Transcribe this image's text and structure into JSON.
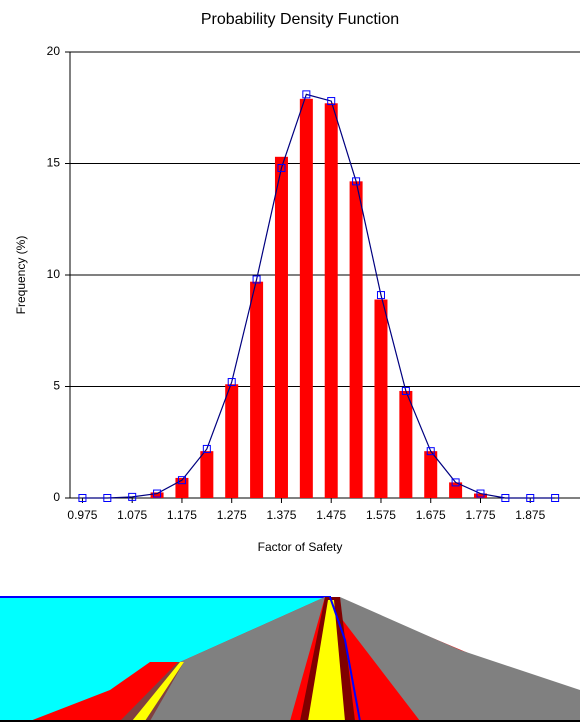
{
  "chart_data": {
    "type": "bar",
    "title": "Probability Density Function",
    "x_label": "Factor of Safety",
    "y_label": "Frequency (%)",
    "x": [
      0.975,
      1.025,
      1.075,
      1.125,
      1.175,
      1.225,
      1.275,
      1.325,
      1.375,
      1.425,
      1.475,
      1.525,
      1.575,
      1.625,
      1.675,
      1.725,
      1.775,
      1.825,
      1.875,
      1.925
    ],
    "bars": {
      "color": "#ff0000",
      "values": [
        0,
        0,
        0,
        0.25,
        0.9,
        2.1,
        5.1,
        9.7,
        15.3,
        17.9,
        17.7,
        14.2,
        8.9,
        4.8,
        2.1,
        0.7,
        0.2,
        0,
        0,
        0
      ]
    },
    "line": {
      "color": "#000080",
      "marker_color": "#0000ff",
      "values": [
        0,
        0,
        0.05,
        0.2,
        0.8,
        2.2,
        5.2,
        9.8,
        14.8,
        18.1,
        17.8,
        14.2,
        9.1,
        4.8,
        2.1,
        0.7,
        0.2,
        0,
        0,
        0
      ]
    },
    "xlim": [
      0.95,
      1.975
    ],
    "xticks": [
      0.975,
      1.075,
      1.175,
      1.275,
      1.375,
      1.475,
      1.575,
      1.675,
      1.775,
      1.875
    ],
    "ylim": [
      0,
      20
    ],
    "yticks": [
      0,
      5,
      10,
      15,
      20
    ],
    "grid": true
  }
}
